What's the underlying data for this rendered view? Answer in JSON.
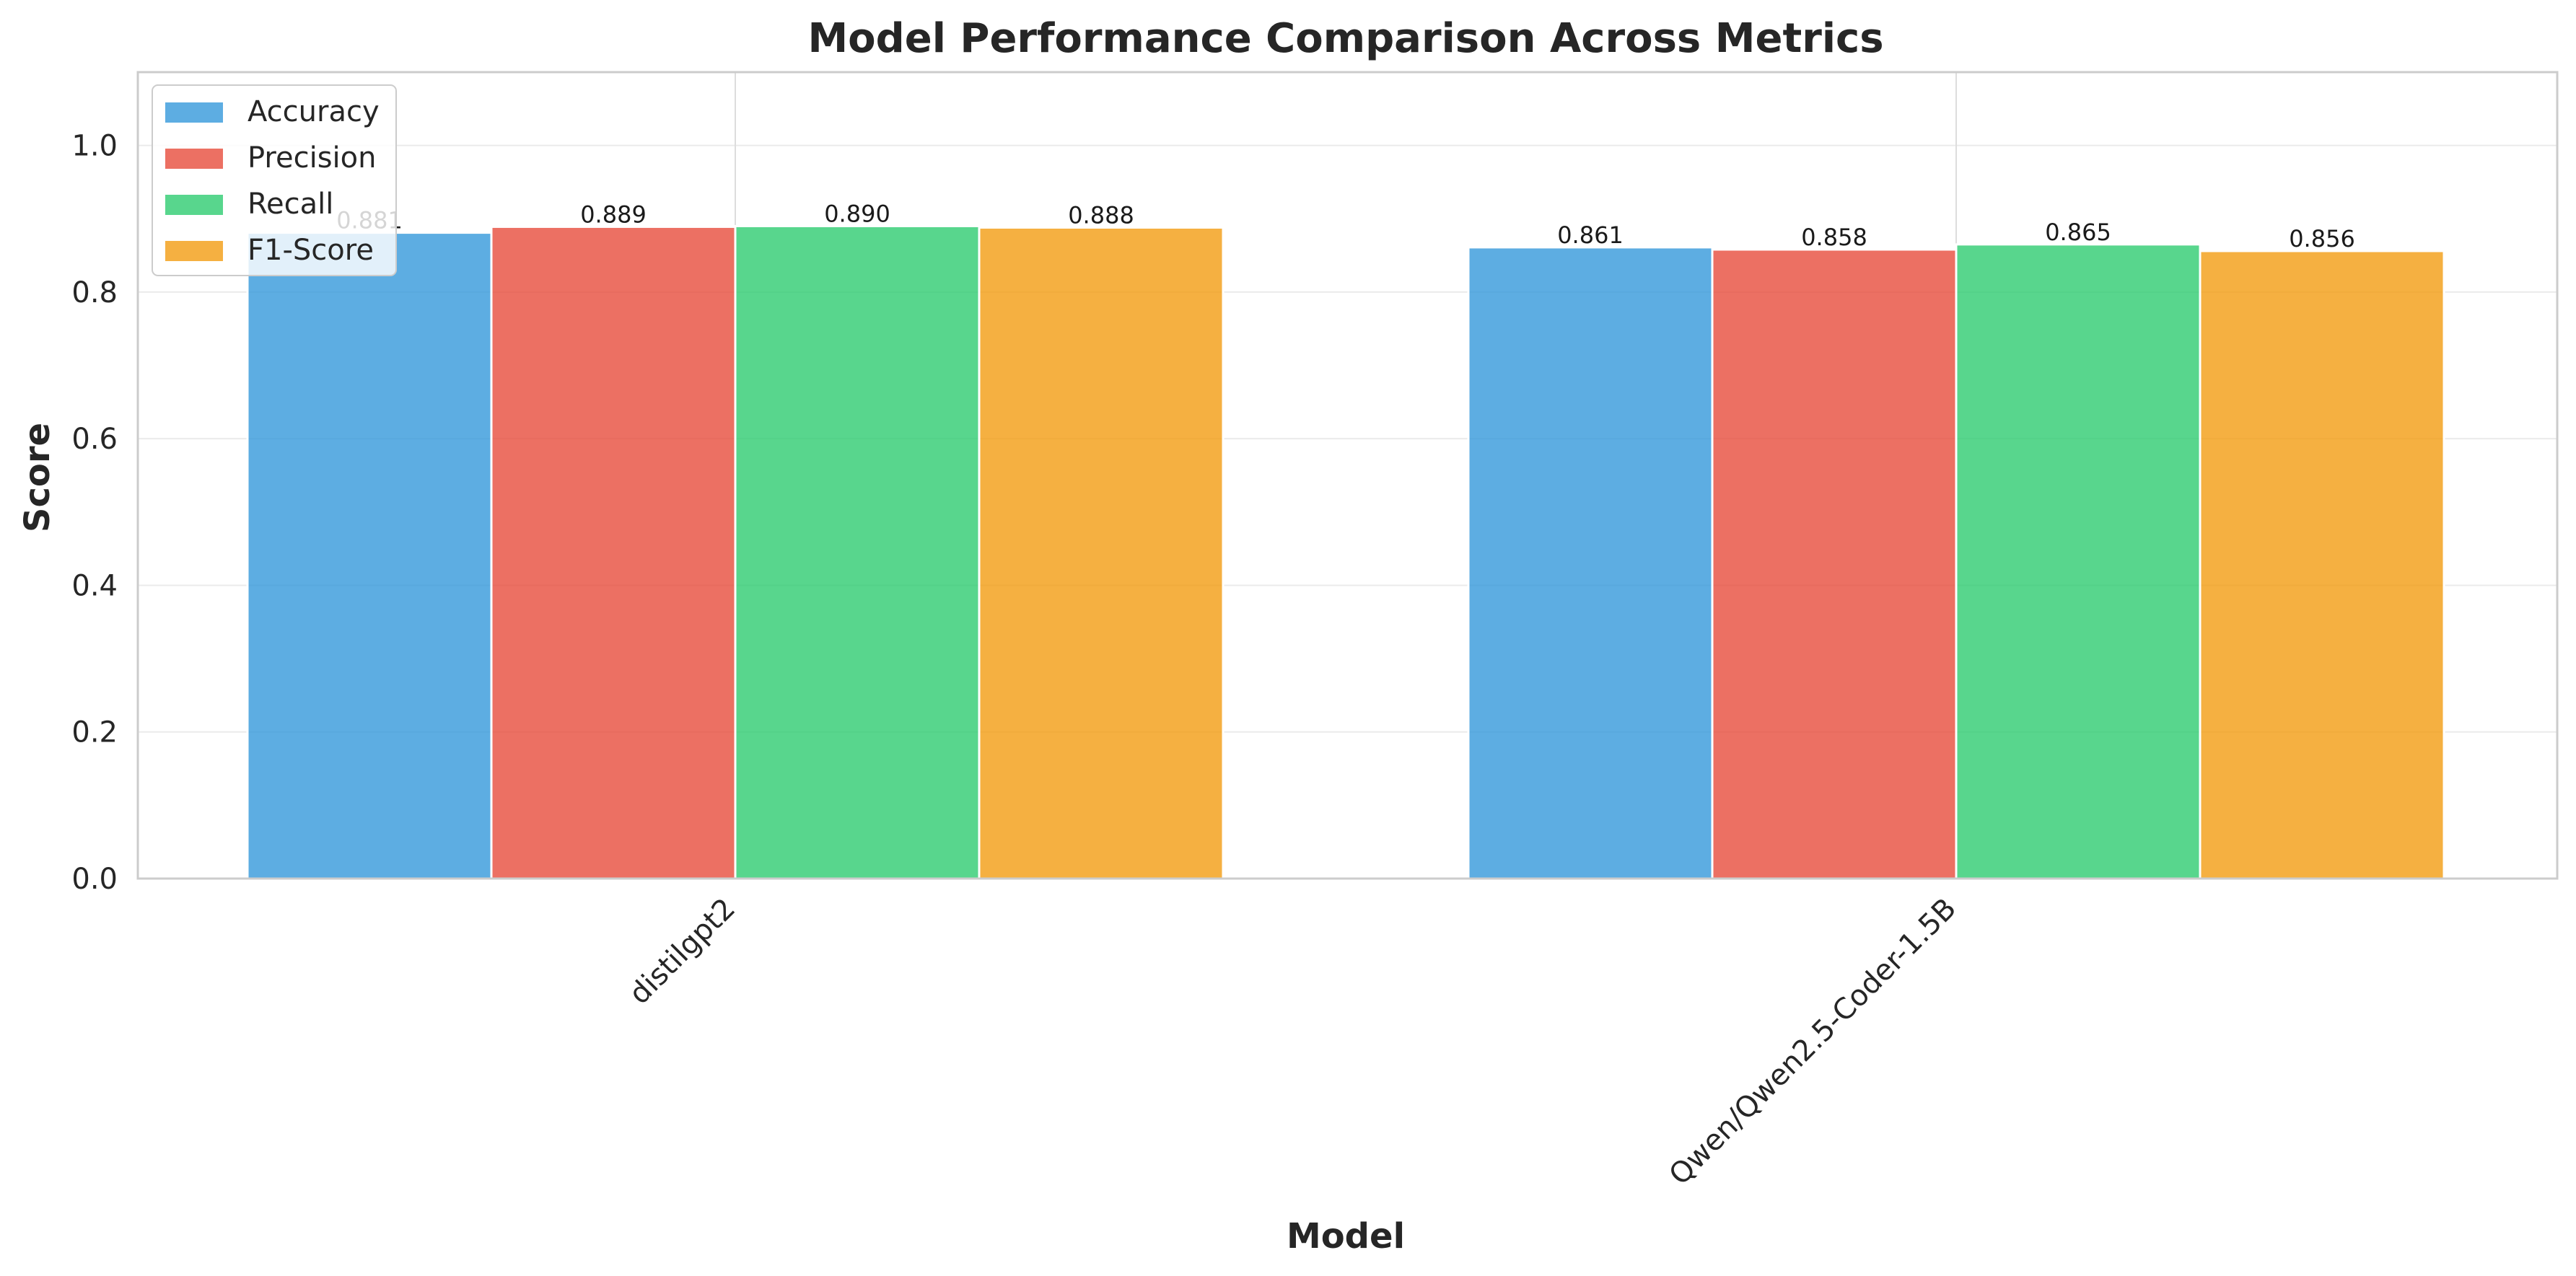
{
  "chart_data": {
    "type": "bar",
    "title": "Model Performance Comparison Across Metrics",
    "xlabel": "Model",
    "ylabel": "Score",
    "categories": [
      "distilgpt2",
      "Qwen/Qwen2.5-Coder-1.5B"
    ],
    "series": [
      {
        "name": "Accuracy",
        "values": [
          0.881,
          0.861
        ],
        "color": "#3498db"
      },
      {
        "name": "Precision",
        "values": [
          0.889,
          0.858
        ],
        "color": "#e74c3c"
      },
      {
        "name": "Recall",
        "values": [
          0.89,
          0.865
        ],
        "color": "#2ecc71"
      },
      {
        "name": "F1-Score",
        "values": [
          0.888,
          0.856
        ],
        "color": "#f39c12"
      }
    ],
    "ylim": [
      0,
      1.1
    ],
    "yticks": [
      0.0,
      0.2,
      0.4,
      0.6,
      0.8,
      1.0
    ],
    "grid": true,
    "legend_position": "top-left"
  }
}
